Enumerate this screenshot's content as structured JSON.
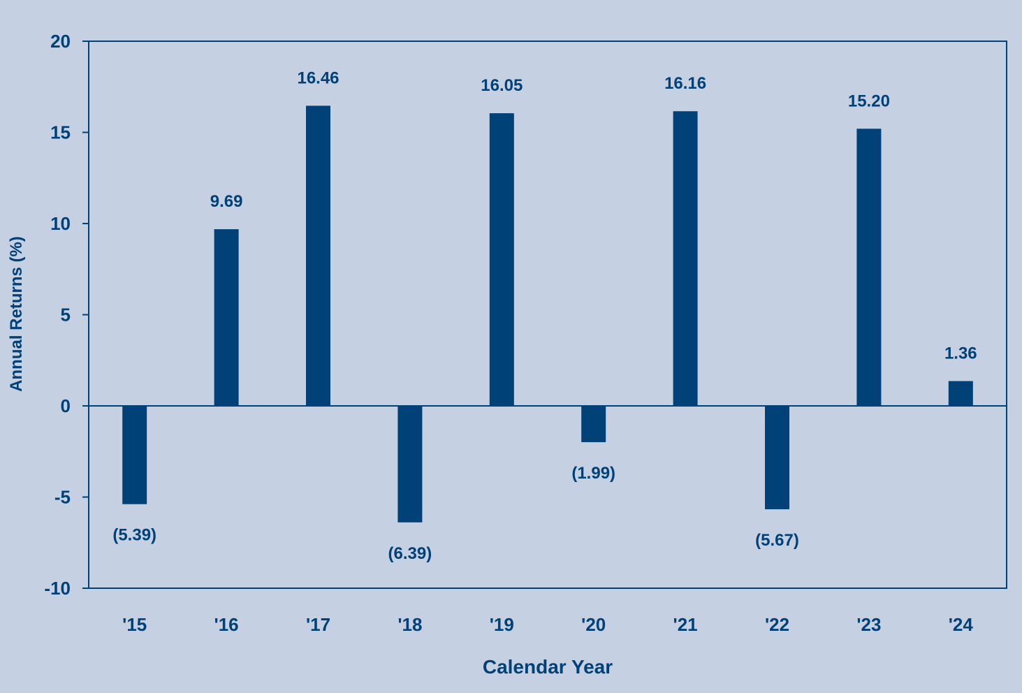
{
  "colors": {
    "background": "#c6d0e3",
    "bar": "#004178",
    "axis": "#004178",
    "text": "#004178"
  },
  "chart_data": {
    "type": "bar",
    "title": "",
    "xlabel": "Calendar Year",
    "ylabel": "Annual Returns (%)",
    "categories": [
      "'15",
      "'16",
      "'17",
      "'18",
      "'19",
      "'20",
      "'21",
      "'22",
      "'23",
      "'24"
    ],
    "values": [
      -5.39,
      9.69,
      16.46,
      -6.39,
      16.05,
      -1.99,
      16.16,
      -5.67,
      15.2,
      1.36
    ],
    "value_labels": [
      "(5.39)",
      "9.69",
      "16.46",
      "(6.39)",
      "16.05",
      "(1.99)",
      "16.16",
      "(5.67)",
      "15.20",
      "1.36"
    ],
    "ylim": [
      -10,
      20
    ],
    "yticks": [
      -10,
      -5,
      0,
      5,
      10,
      15,
      20
    ],
    "ytick_labels": [
      "-10",
      "-5",
      "0",
      "5",
      "10",
      "15",
      "20"
    ],
    "grid": false,
    "legend": "none"
  }
}
